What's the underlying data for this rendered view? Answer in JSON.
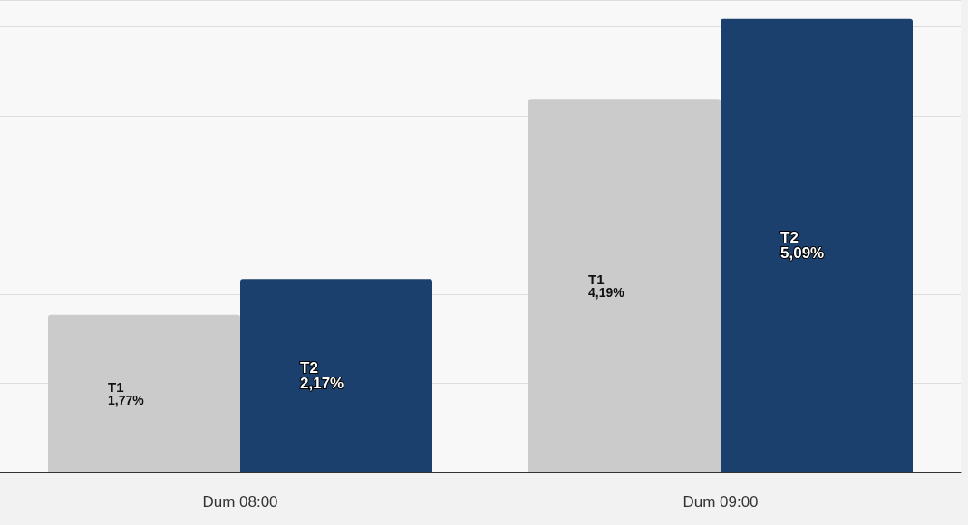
{
  "chart_data": {
    "type": "bar",
    "categories": [
      "Dum 08:00",
      "Dum 09:00"
    ],
    "series": [
      {
        "name": "T1",
        "color": "#cbcbcb",
        "values": [
          1.77,
          4.19
        ],
        "value_labels": [
          "1,77%",
          "4,19%"
        ]
      },
      {
        "name": "T2",
        "color": "#1b406d",
        "values": [
          2.17,
          5.09
        ],
        "value_labels": [
          "2,17%",
          "5,09%"
        ]
      }
    ],
    "ylim": [
      0,
      5.3
    ],
    "yticks": [
      {
        "value": 0,
        "label": null
      },
      {
        "value": 1,
        "label": null
      },
      {
        "value": 2,
        "label": null
      },
      {
        "value": 3,
        "label": null
      },
      {
        "value": 4,
        "label": null
      },
      {
        "value": 5,
        "label": null
      }
    ],
    "grid": "y",
    "legend": false,
    "tick_labels": "x"
  }
}
